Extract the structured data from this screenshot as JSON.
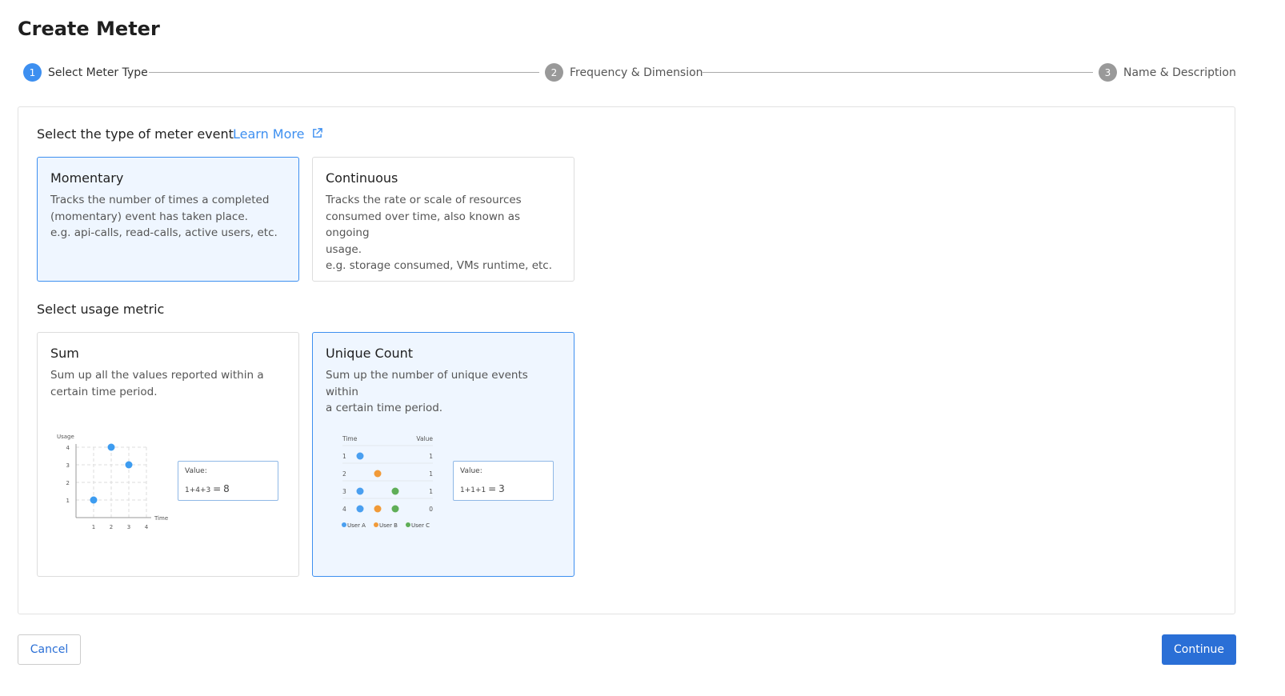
{
  "page": {
    "title": "Create Meter"
  },
  "stepper": [
    {
      "num": "1",
      "label": "Select Meter Type",
      "active": true
    },
    {
      "num": "2",
      "label": "Frequency & Dimension",
      "active": false
    },
    {
      "num": "3",
      "label": "Name & Description",
      "active": false
    }
  ],
  "event_section": {
    "heading": "Select the type of meter event",
    "learn_more": "Learn More",
    "icon": "external-link-icon",
    "cards": [
      {
        "title": "Momentary",
        "desc": "Tracks the number of times a completed\n(momentary) event has taken place.\ne.g. api-calls, read-calls, active users, etc.",
        "selected": true
      },
      {
        "title": "Continuous",
        "desc": "Tracks the rate or scale of resources\nconsumed over time, also known as ongoing\nusage.\ne.g. storage consumed, VMs runtime, etc.",
        "selected": false
      }
    ]
  },
  "metric_section": {
    "heading": "Select usage metric",
    "sum": {
      "title": "Sum",
      "desc": "Sum up all the values reported within a\ncertain time period.",
      "selected": false,
      "chart": {
        "ylabel": "Usage",
        "xlabel": "Time",
        "xticks": [
          "1",
          "2",
          "3",
          "4"
        ],
        "yticks": [
          "1",
          "2",
          "3",
          "4"
        ],
        "points": [
          [
            1,
            1
          ],
          [
            2,
            4
          ],
          [
            3,
            3
          ]
        ],
        "color": "#3d9cf0"
      },
      "value_label": "Value:",
      "formula": "1+4+3",
      "equals": "=",
      "result": "8"
    },
    "unique": {
      "title": "Unique Count",
      "desc": "Sum up the number of unique events within\na certain time period.",
      "selected": true,
      "table": {
        "col_time": "Time",
        "col_value": "Value",
        "rows": [
          {
            "time": "1",
            "users": [
              "A"
            ],
            "value": "1"
          },
          {
            "time": "2",
            "users": [
              "B"
            ],
            "value": "1"
          },
          {
            "time": "3",
            "users": [
              "A",
              "C"
            ],
            "value": "1"
          },
          {
            "time": "4",
            "users": [
              "A",
              "B",
              "C"
            ],
            "value": "0"
          }
        ],
        "legend": [
          {
            "key": "A",
            "label": "User A",
            "color": "#4a9ff0"
          },
          {
            "key": "B",
            "label": "User B",
            "color": "#f19a38"
          },
          {
            "key": "C",
            "label": "User C",
            "color": "#5fae57"
          }
        ]
      },
      "value_label": "Value:",
      "formula": "1+1+1",
      "equals": "=",
      "result": "3"
    }
  },
  "footer": {
    "cancel": "Cancel",
    "continue": "Continue"
  }
}
